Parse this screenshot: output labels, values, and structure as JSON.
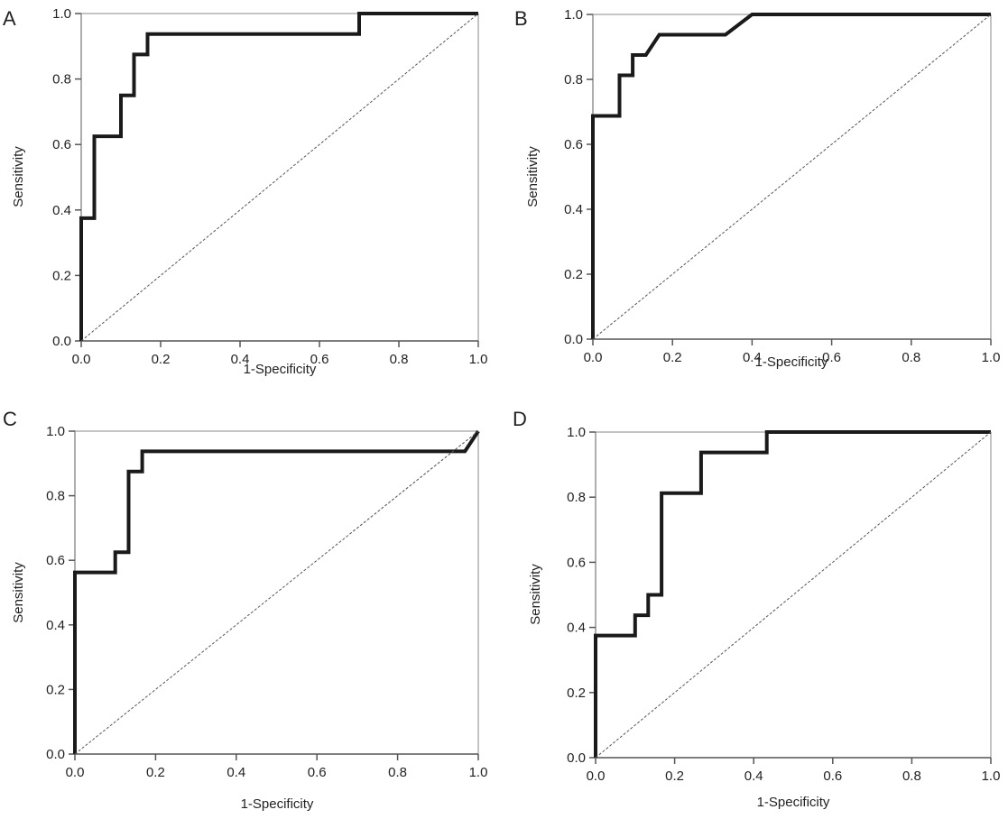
{
  "chart_data": [
    {
      "type": "line",
      "panel": "A",
      "xlabel": "1-Specificity",
      "ylabel": "Sensitivity",
      "xlim": [
        0,
        1
      ],
      "ylim": [
        0,
        1
      ],
      "xticks": [
        "0.0",
        "0.2",
        "0.4",
        "0.6",
        "0.8",
        "1.0"
      ],
      "yticks": [
        "0.0",
        "0.2",
        "0.4",
        "0.6",
        "0.8",
        "1.0"
      ],
      "grid": false,
      "series": [
        {
          "name": "ROC curve",
          "style": "solid-thick",
          "x": [
            0,
            0,
            0.033,
            0.033,
            0.1,
            0.1,
            0.133,
            0.133,
            0.167,
            0.167,
            0.7,
            0.7,
            1
          ],
          "y": [
            0,
            0.375,
            0.375,
            0.625,
            0.625,
            0.75,
            0.75,
            0.875,
            0.875,
            0.9375,
            0.9375,
            1,
            1
          ]
        },
        {
          "name": "Reference line",
          "style": "dashed-thin",
          "x": [
            0,
            1
          ],
          "y": [
            0,
            1
          ]
        }
      ]
    },
    {
      "type": "line",
      "panel": "B",
      "xlabel": "1-Specificity",
      "ylabel": "Sensitivity",
      "xlim": [
        0,
        1
      ],
      "ylim": [
        0,
        1
      ],
      "xticks": [
        "0.0",
        "0.2",
        "0.4",
        "0.6",
        "0.8",
        "1.0"
      ],
      "yticks": [
        "0.0",
        "0.2",
        "0.4",
        "0.6",
        "0.8",
        "1.0"
      ],
      "grid": false,
      "series": [
        {
          "name": "ROC curve",
          "style": "solid-thick",
          "x": [
            0,
            0,
            0.067,
            0.067,
            0.1,
            0.1,
            0.133,
            0.167,
            0.333,
            0.4,
            1
          ],
          "y": [
            0,
            0.6875,
            0.6875,
            0.8125,
            0.8125,
            0.875,
            0.875,
            0.9375,
            0.9375,
            1,
            1
          ]
        },
        {
          "name": "Reference line",
          "style": "dashed-thin",
          "x": [
            0,
            1
          ],
          "y": [
            0,
            1
          ]
        }
      ]
    },
    {
      "type": "line",
      "panel": "C",
      "xlabel": "1-Specificity",
      "ylabel": "Sensitivity",
      "xlim": [
        0,
        1
      ],
      "ylim": [
        0,
        1
      ],
      "xticks": [
        "0.0",
        "0.2",
        "0.4",
        "0.6",
        "0.8",
        "1.0"
      ],
      "yticks": [
        "0.0",
        "0.2",
        "0.4",
        "0.6",
        "0.8",
        "1.0"
      ],
      "grid": false,
      "series": [
        {
          "name": "ROC curve",
          "style": "solid-thick",
          "x": [
            0,
            0,
            0.1,
            0.1,
            0.133,
            0.133,
            0.167,
            0.167,
            0.967,
            1
          ],
          "y": [
            0,
            0.5625,
            0.5625,
            0.625,
            0.625,
            0.875,
            0.875,
            0.9375,
            0.9375,
            1
          ]
        },
        {
          "name": "Reference line",
          "style": "dashed-thin",
          "x": [
            0,
            1
          ],
          "y": [
            0,
            1
          ]
        }
      ]
    },
    {
      "type": "line",
      "panel": "D",
      "xlabel": "1-Specificity",
      "ylabel": "Sensitivity",
      "xlim": [
        0,
        1
      ],
      "ylim": [
        0,
        1
      ],
      "xticks": [
        "0.0",
        "0.2",
        "0.4",
        "0.6",
        "0.8",
        "1.0"
      ],
      "yticks": [
        "0.0",
        "0.2",
        "0.4",
        "0.6",
        "0.8",
        "1.0"
      ],
      "grid": false,
      "series": [
        {
          "name": "ROC curve",
          "style": "solid-thick",
          "x": [
            0,
            0,
            0.1,
            0.1,
            0.133,
            0.133,
            0.167,
            0.167,
            0.267,
            0.267,
            0.433,
            0.433,
            1
          ],
          "y": [
            0,
            0.375,
            0.375,
            0.4375,
            0.4375,
            0.5,
            0.5,
            0.8125,
            0.8125,
            0.9375,
            0.9375,
            1,
            1
          ]
        },
        {
          "name": "Reference line",
          "style": "dashed-thin",
          "x": [
            0,
            1
          ],
          "y": [
            0,
            1
          ]
        }
      ]
    }
  ],
  "colors": {
    "curve": "#1a1a1a",
    "frame": "#555555",
    "reference": "#555555"
  }
}
